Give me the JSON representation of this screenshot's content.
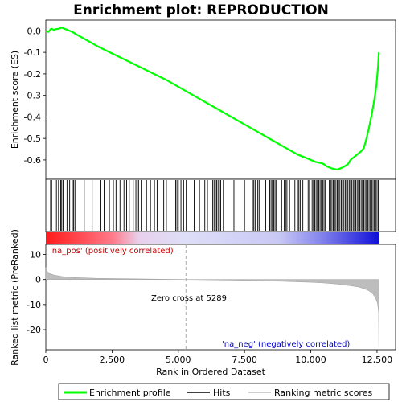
{
  "chart_data": {
    "type": "line",
    "title": "Enrichment plot: REPRODUCTION",
    "top_panel": {
      "ylabel": "Enrichment score (ES)",
      "ylim": [
        -0.69,
        0.05
      ],
      "yticks": [
        "0.0",
        "-0.1",
        "-0.2",
        "-0.3",
        "-0.4",
        "-0.5",
        "-0.6"
      ],
      "ytick_values": [
        0.0,
        -0.1,
        -0.2,
        -0.3,
        -0.4,
        -0.5,
        -0.6
      ],
      "series": [
        {
          "name": "Enrichment profile",
          "x": [
            0,
            100,
            200,
            300,
            400,
            500,
            600,
            700,
            800,
            900,
            1000,
            1200,
            1500,
            2000,
            2500,
            3000,
            3500,
            4000,
            4500,
            5000,
            5500,
            6000,
            6500,
            7000,
            7500,
            8000,
            8500,
            9000,
            9500,
            9800,
            10000,
            10200,
            10400,
            10500,
            10600,
            10800,
            11000,
            11200,
            11400,
            11500,
            11600,
            11800,
            11900,
            12000,
            12100,
            12200,
            12300,
            12400,
            12480,
            12540,
            12570
          ],
          "y": [
            0.0,
            -0.005,
            0.01,
            0.005,
            0.008,
            0.01,
            0.015,
            0.01,
            0.005,
            0.0,
            -0.005,
            -0.02,
            -0.04,
            -0.075,
            -0.105,
            -0.135,
            -0.165,
            -0.195,
            -0.225,
            -0.26,
            -0.295,
            -0.33,
            -0.365,
            -0.4,
            -0.435,
            -0.47,
            -0.505,
            -0.54,
            -0.575,
            -0.59,
            -0.6,
            -0.61,
            -0.615,
            -0.62,
            -0.63,
            -0.64,
            -0.645,
            -0.635,
            -0.62,
            -0.6,
            -0.59,
            -0.57,
            -0.56,
            -0.545,
            -0.5,
            -0.45,
            -0.39,
            -0.32,
            -0.25,
            -0.16,
            -0.1
          ]
        }
      ]
    },
    "hits_panel": {
      "legend_item": "Hits",
      "hit_positions": [
        180,
        220,
        400,
        480,
        560,
        600,
        650,
        800,
        900,
        1000,
        1050,
        1100,
        1450,
        1750,
        2050,
        2200,
        2400,
        2550,
        2650,
        2800,
        2950,
        3050,
        3150,
        3300,
        3400,
        3450,
        3500,
        3600,
        3800,
        3950,
        4100,
        4200,
        4450,
        4550,
        4900,
        4950,
        5000,
        5100,
        5200,
        5300,
        5600,
        5800,
        6000,
        6100,
        6300,
        6350,
        6400,
        6450,
        6500,
        6550,
        6600,
        6700,
        7100,
        7500,
        7800,
        7850,
        7900,
        8000,
        8050,
        8300,
        8450,
        8500,
        8550,
        8600,
        8650,
        8700,
        8900,
        9000,
        9050,
        9100,
        9200,
        9400,
        9500,
        9550,
        9600,
        9700,
        9900,
        9950,
        10050,
        10100,
        10150,
        10200,
        10250,
        10300,
        10350,
        10400,
        10450,
        10500,
        10550,
        10700,
        10750,
        10800,
        10850,
        10900,
        10950,
        11000,
        11050,
        11100,
        11150,
        11200,
        11250,
        11300,
        11350,
        11400,
        11450,
        11500,
        11550,
        11600,
        11650,
        11700,
        11750,
        11800,
        11850,
        11900,
        11950,
        12000,
        12050,
        12100,
        12150,
        12200,
        12250,
        12300,
        12350,
        12400,
        12450,
        12500,
        12550
      ]
    },
    "ranking_panel": {
      "ylabel": "Ranked list metric (PreRanked)",
      "ylim": [
        -28,
        14
      ],
      "yticks": [
        "10",
        "0",
        "-10",
        "-20"
      ],
      "ytick_values": [
        10,
        0,
        -10,
        -20
      ],
      "series": [
        {
          "name": "Ranking metric scores",
          "x": [
            0,
            50,
            150,
            300,
            600,
            1000,
            2000,
            3000,
            4000,
            5289,
            6000,
            7000,
            8000,
            9000,
            10000,
            10500,
            11000,
            11500,
            11800,
            12000,
            12200,
            12350,
            12450,
            12520,
            12560,
            12570
          ],
          "y": [
            4.8,
            3.2,
            2.5,
            1.8,
            1.2,
            0.8,
            0.45,
            0.3,
            0.15,
            0.0,
            -0.1,
            -0.25,
            -0.45,
            -0.7,
            -1.1,
            -1.4,
            -1.8,
            -2.5,
            -3.0,
            -3.6,
            -4.5,
            -5.8,
            -7.5,
            -9.5,
            -13,
            -27
          ]
        }
      ],
      "zero_cross_label": "Zero cross at 5289",
      "zero_cross_x": 5289,
      "pos_label": "'na_pos' (positively correlated)",
      "neg_label": "'na_neg' (negatively correlated)"
    },
    "xlabel": "Rank in Ordered Dataset",
    "xlim": [
      0,
      13200
    ],
    "xticks": [
      "0",
      "2,500",
      "5,000",
      "7,500",
      "10,000",
      "12,500"
    ],
    "xtick_values": [
      0,
      2500,
      5000,
      7500,
      10000,
      12500
    ],
    "n_genes": 12570,
    "colors": {
      "enrichment_line": "#00ff00",
      "hits": "#000000",
      "ranking_fill": "#bdbdbd",
      "zero_cross_line": "#aaaaaa",
      "bar_positive": "#ff0000",
      "bar_neutral": "#d8d8f8",
      "bar_negative": "#0000ff"
    },
    "legend": [
      {
        "label": "Enrichment profile",
        "color": "#00ff00"
      },
      {
        "label": "Hits",
        "color": "#000000"
      },
      {
        "label": "Ranking metric scores",
        "color": "#bdbdbd"
      }
    ]
  }
}
